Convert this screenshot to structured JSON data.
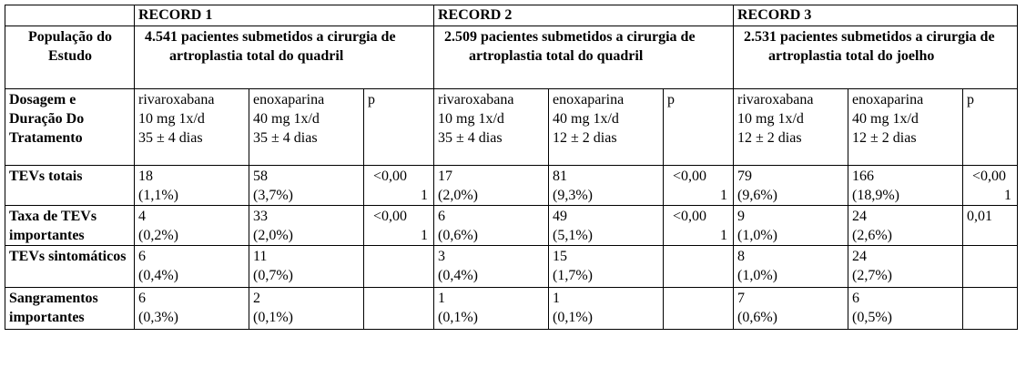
{
  "caption_fragment": "",
  "header": {
    "record1": "RECORD 1",
    "record2": "RECORD 2",
    "record3": "RECORD 3"
  },
  "population": {
    "label": "População do Estudo",
    "r1": "4.541 pacientes submetidos a cirurgia de artroplastia total do quadril",
    "r2": "2.509 pacientes submetidos a cirurgia de artroplastia total do quadril",
    "r3": "2.531 pacientes submetidos a cirurgia de artroplastia total do joelho"
  },
  "dosage": {
    "label": "Dosagem e Duração Do Tratamento",
    "r1": [
      {
        "drug": "rivaroxabana",
        "dose": "10 mg 1x/d",
        "days": "35 ± 4 dias"
      },
      {
        "drug": "enoxaparina",
        "dose": "40 mg 1x/d",
        "days": "35 ± 4 dias"
      },
      {
        "drug": "p"
      }
    ],
    "r2": [
      {
        "drug": "rivaroxabana",
        "dose": "10 mg 1x/d",
        "days": "35 ± 4 dias"
      },
      {
        "drug": "enoxaparina",
        "dose": "40 mg 1x/d",
        "days": "12 ± 2 dias"
      },
      {
        "drug": "p"
      }
    ],
    "r3": [
      {
        "drug": "rivaroxabana",
        "dose": "10 mg 1x/d",
        "days": "12 ± 2 dias"
      },
      {
        "drug": "enoxaparina",
        "dose": "40 mg 1x/d",
        "days": "12 ± 2 dias"
      },
      {
        "drug": "p"
      }
    ]
  },
  "rows": [
    {
      "label": "TEVs totais",
      "cells": [
        [
          "18",
          "(1,1%)"
        ],
        [
          "58",
          "(3,7%)"
        ],
        [
          "<0,00",
          "1"
        ],
        [
          "17",
          "(2,0%)"
        ],
        [
          "81",
          "(9,3%)"
        ],
        [
          "<0,00",
          "1"
        ],
        [
          "79",
          "(9,6%)"
        ],
        [
          "166",
          "(18,9%)"
        ],
        [
          "<0,00",
          "1"
        ]
      ]
    },
    {
      "label": "Taxa de TEVs importantes",
      "cells": [
        [
          "4",
          "(0,2%)"
        ],
        [
          "33",
          "(2,0%)"
        ],
        [
          "<0,00",
          "1"
        ],
        [
          "6",
          "(0,6%)"
        ],
        [
          "49",
          "(5,1%)"
        ],
        [
          "<0,00",
          "1"
        ],
        [
          "9",
          "(1,0%)"
        ],
        [
          "24",
          "(2,6%)"
        ],
        [
          "0,01",
          ""
        ]
      ]
    },
    {
      "label": "TEVs sintomáticos",
      "cells": [
        [
          "6",
          "(0,4%)"
        ],
        [
          "11",
          "(0,7%)"
        ],
        [
          "",
          ""
        ],
        [
          "3",
          "(0,4%)"
        ],
        [
          "15",
          "(1,7%)"
        ],
        [
          "",
          ""
        ],
        [
          "8",
          "(1,0%)"
        ],
        [
          "24",
          "(2,7%)"
        ],
        [
          "",
          ""
        ]
      ]
    },
    {
      "label": "Sangramentos importantes",
      "cells": [
        [
          "6",
          "(0,3%)"
        ],
        [
          "2",
          "(0,1%)"
        ],
        [
          "",
          ""
        ],
        [
          "1",
          "(0,1%)"
        ],
        [
          "1",
          "(0,1%)"
        ],
        [
          "",
          ""
        ],
        [
          "7",
          "(0,6%)"
        ],
        [
          "6",
          "(0,5%)"
        ],
        [
          "",
          ""
        ]
      ]
    }
  ]
}
